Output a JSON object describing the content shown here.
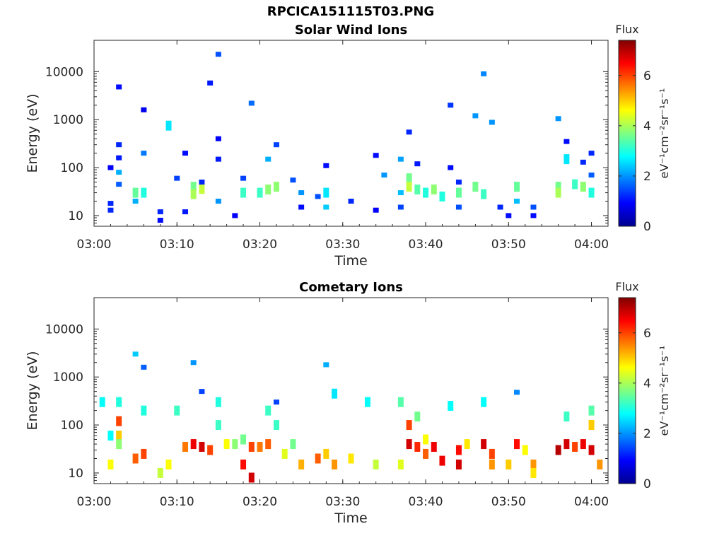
{
  "figure": {
    "title": "RPCICA151115T03.PNG"
  },
  "colormap": [
    "#00008f",
    "#0000ff",
    "#0080ff",
    "#00ffff",
    "#80ff80",
    "#ffff00",
    "#ff8000",
    "#ff0000",
    "#800000"
  ],
  "chart_data": [
    {
      "type": "heatmap",
      "title": "Solar Wind Ions",
      "xlabel": "Time",
      "ylabel": "Energy (eV)",
      "x_range": [
        "03:00",
        "04:02"
      ],
      "x_ticks": [
        "03:00",
        "03:10",
        "03:20",
        "03:30",
        "03:40",
        "03:50",
        "04:00"
      ],
      "y_scale": "log",
      "y_range": [
        6,
        45000
      ],
      "y_ticks": [
        10,
        100,
        1000,
        10000
      ],
      "y_tick_labels": [
        "10",
        "100",
        "1000",
        "10000"
      ],
      "colorbar": {
        "label": "Flux",
        "units": "eV⁻¹cm⁻²sr⁻¹s⁻¹",
        "range": [
          0,
          7.4
        ],
        "ticks": [
          0,
          2,
          4,
          6
        ]
      },
      "points": [
        [
          "03:02",
          18,
          1.2
        ],
        [
          "03:02",
          13,
          1.2
        ],
        [
          "03:02",
          100,
          0.9
        ],
        [
          "03:03",
          160,
          1.1
        ],
        [
          "03:03",
          300,
          1.2
        ],
        [
          "03:03",
          80,
          2.2
        ],
        [
          "03:03",
          45,
          1.6
        ],
        [
          "03:03",
          4800,
          1.0
        ],
        [
          "03:05",
          30,
          3.5
        ],
        [
          "03:05",
          20,
          2.2
        ],
        [
          "03:06",
          30,
          3.0
        ],
        [
          "03:06",
          200,
          1.8
        ],
        [
          "03:06",
          1600,
          0.8
        ],
        [
          "03:08",
          12,
          1.2
        ],
        [
          "03:08",
          8,
          1.0
        ],
        [
          "03:09",
          750,
          2.6
        ],
        [
          "03:10",
          60,
          1.4
        ],
        [
          "03:11",
          200,
          1.0
        ],
        [
          "03:11",
          12,
          1.1
        ],
        [
          "03:12",
          40,
          3.6
        ],
        [
          "03:12",
          28,
          4.0
        ],
        [
          "03:13",
          36,
          4.2
        ],
        [
          "03:13",
          50,
          1.2
        ],
        [
          "03:14",
          5800,
          1.1
        ],
        [
          "03:15",
          20,
          2.0
        ],
        [
          "03:15",
          400,
          0.9
        ],
        [
          "03:15",
          150,
          1.1
        ],
        [
          "03:15",
          23000,
          1.5
        ],
        [
          "03:17",
          10,
          0.9
        ],
        [
          "03:18",
          60,
          1.4
        ],
        [
          "03:18",
          30,
          3.2
        ],
        [
          "03:19",
          2200,
          1.7
        ],
        [
          "03:20",
          30,
          3.2
        ],
        [
          "03:21",
          35,
          3.8
        ],
        [
          "03:21",
          150,
          2.2
        ],
        [
          "03:22",
          40,
          3.8
        ],
        [
          "03:22",
          300,
          1.4
        ],
        [
          "03:24",
          55,
          1.5
        ],
        [
          "03:25",
          30,
          2.0
        ],
        [
          "03:25",
          15,
          1.0
        ],
        [
          "03:27",
          25,
          1.5
        ],
        [
          "03:28",
          30,
          2.6
        ],
        [
          "03:28",
          110,
          1.0
        ],
        [
          "03:28",
          15,
          2.4
        ],
        [
          "03:31",
          20,
          1.2
        ],
        [
          "03:34",
          180,
          1.0
        ],
        [
          "03:34",
          13,
          0.9
        ],
        [
          "03:35",
          70,
          2.0
        ],
        [
          "03:37",
          15,
          1.4
        ],
        [
          "03:37",
          30,
          2.3
        ],
        [
          "03:37",
          150,
          2.1
        ],
        [
          "03:38",
          60,
          3.6
        ],
        [
          "03:38",
          40,
          4.2
        ],
        [
          "03:38",
          550,
          1.2
        ],
        [
          "03:39",
          35,
          3.4
        ],
        [
          "03:39",
          120,
          1.1
        ],
        [
          "03:40",
          30,
          3.0
        ],
        [
          "03:41",
          35,
          3.8
        ],
        [
          "03:42",
          25,
          3.0
        ],
        [
          "03:43",
          2000,
          1.3
        ],
        [
          "03:43",
          100,
          1.0
        ],
        [
          "03:44",
          30,
          3.5
        ],
        [
          "03:44",
          50,
          1.2
        ],
        [
          "03:44",
          15,
          1.5
        ],
        [
          "03:46",
          40,
          3.6
        ],
        [
          "03:47",
          28,
          3.2
        ],
        [
          "03:47",
          9000,
          1.9
        ],
        [
          "03:46",
          1200,
          2.0
        ],
        [
          "03:48",
          880,
          2.0
        ],
        [
          "03:49",
          15,
          1.2
        ],
        [
          "03:50",
          10,
          1.0
        ],
        [
          "03:51",
          40,
          3.5
        ],
        [
          "03:51",
          20,
          2.3
        ],
        [
          "03:53",
          15,
          1.5
        ],
        [
          "03:53",
          10,
          1.0
        ],
        [
          "03:56",
          40,
          3.6
        ],
        [
          "03:56",
          30,
          4.0
        ],
        [
          "03:56",
          1050,
          2.0
        ],
        [
          "03:57",
          350,
          1.0
        ],
        [
          "03:57",
          150,
          2.6
        ],
        [
          "03:58",
          45,
          3.2
        ],
        [
          "03:59",
          40,
          3.8
        ],
        [
          "03:59",
          130,
          1.2
        ],
        [
          "04:00",
          70,
          1.6
        ],
        [
          "04:00",
          30,
          3.0
        ],
        [
          "04:00",
          200,
          1.2
        ]
      ]
    },
    {
      "type": "heatmap",
      "title": "Cometary Ions",
      "xlabel": "Time",
      "ylabel": "Energy (eV)",
      "x_range": [
        "03:00",
        "04:02"
      ],
      "x_ticks": [
        "03:00",
        "03:10",
        "03:20",
        "03:30",
        "03:40",
        "03:50",
        "04:00"
      ],
      "y_scale": "log",
      "y_range": [
        6,
        45000
      ],
      "y_ticks": [
        10,
        100,
        1000,
        10000
      ],
      "y_tick_labels": [
        "10",
        "100",
        "1000",
        "10000"
      ],
      "colorbar": {
        "label": "Flux",
        "units": "eV⁻¹cm⁻²sr⁻¹s⁻¹",
        "range": [
          0,
          7.4
        ],
        "ticks": [
          0,
          2,
          4,
          6
        ]
      },
      "points": [
        [
          "03:01",
          300,
          2.8
        ],
        [
          "03:02",
          15,
          4.6
        ],
        [
          "03:02",
          60,
          2.8
        ],
        [
          "03:03",
          120,
          6.0
        ],
        [
          "03:03",
          60,
          5.0
        ],
        [
          "03:03",
          300,
          3.0
        ],
        [
          "03:03",
          40,
          3.8
        ],
        [
          "03:05",
          3000,
          2.4
        ],
        [
          "03:05",
          20,
          5.8
        ],
        [
          "03:06",
          25,
          6.0
        ],
        [
          "03:06",
          200,
          3.0
        ],
        [
          "03:06",
          1600,
          1.6
        ],
        [
          "03:08",
          10,
          4.2
        ],
        [
          "03:09",
          15,
          4.6
        ],
        [
          "03:10",
          200,
          3.2
        ],
        [
          "03:11",
          35,
          5.6
        ],
        [
          "03:12",
          40,
          6.6
        ],
        [
          "03:12",
          2000,
          2.0
        ],
        [
          "03:13",
          35,
          6.8
        ],
        [
          "03:13",
          500,
          1.4
        ],
        [
          "03:14",
          30,
          6.0
        ],
        [
          "03:15",
          100,
          3.2
        ],
        [
          "03:15",
          300,
          3.0
        ],
        [
          "03:16",
          40,
          4.6
        ],
        [
          "03:17",
          40,
          3.8
        ],
        [
          "03:18",
          50,
          3.6
        ],
        [
          "03:18",
          15,
          6.4
        ],
        [
          "03:19",
          35,
          6.0
        ],
        [
          "03:19",
          8,
          6.8
        ],
        [
          "03:20",
          35,
          5.6
        ],
        [
          "03:21",
          200,
          3.2
        ],
        [
          "03:21",
          40,
          5.8
        ],
        [
          "03:22",
          100,
          3.2
        ],
        [
          "03:22",
          300,
          1.4
        ],
        [
          "03:23",
          25,
          4.4
        ],
        [
          "03:24",
          40,
          3.6
        ],
        [
          "03:25",
          15,
          5.2
        ],
        [
          "03:27",
          20,
          5.8
        ],
        [
          "03:28",
          25,
          5.0
        ],
        [
          "03:28",
          1800,
          2.2
        ],
        [
          "03:29",
          450,
          2.6
        ],
        [
          "03:29",
          15,
          5.4
        ],
        [
          "03:31",
          20,
          4.8
        ],
        [
          "03:33",
          300,
          2.8
        ],
        [
          "03:34",
          15,
          4.2
        ],
        [
          "03:37",
          300,
          3.4
        ],
        [
          "03:37",
          15,
          4.4
        ],
        [
          "03:38",
          100,
          6.0
        ],
        [
          "03:38",
          40,
          6.8
        ],
        [
          "03:39",
          35,
          6.2
        ],
        [
          "03:39",
          150,
          3.6
        ],
        [
          "03:40",
          50,
          4.6
        ],
        [
          "03:40",
          25,
          5.8
        ],
        [
          "03:41",
          35,
          6.6
        ],
        [
          "03:42",
          18,
          6.6
        ],
        [
          "03:43",
          250,
          2.8
        ],
        [
          "03:44",
          30,
          6.4
        ],
        [
          "03:44",
          15,
          6.8
        ],
        [
          "03:45",
          40,
          4.8
        ],
        [
          "03:47",
          40,
          6.8
        ],
        [
          "03:47",
          300,
          2.8
        ],
        [
          "03:48",
          25,
          6.0
        ],
        [
          "03:48",
          15,
          5.4
        ],
        [
          "03:50",
          15,
          5.0
        ],
        [
          "03:51",
          40,
          6.4
        ],
        [
          "03:51",
          480,
          1.9
        ],
        [
          "03:52",
          30,
          4.6
        ],
        [
          "03:53",
          15,
          5.4
        ],
        [
          "03:53",
          10,
          4.8
        ],
        [
          "03:56",
          30,
          7.0
        ],
        [
          "03:57",
          40,
          6.8
        ],
        [
          "03:57",
          150,
          3.2
        ],
        [
          "03:58",
          35,
          6.0
        ],
        [
          "03:59",
          40,
          6.6
        ],
        [
          "04:00",
          100,
          5.0
        ],
        [
          "04:00",
          30,
          6.8
        ],
        [
          "04:00",
          200,
          3.4
        ],
        [
          "04:01",
          15,
          5.4
        ]
      ]
    }
  ]
}
